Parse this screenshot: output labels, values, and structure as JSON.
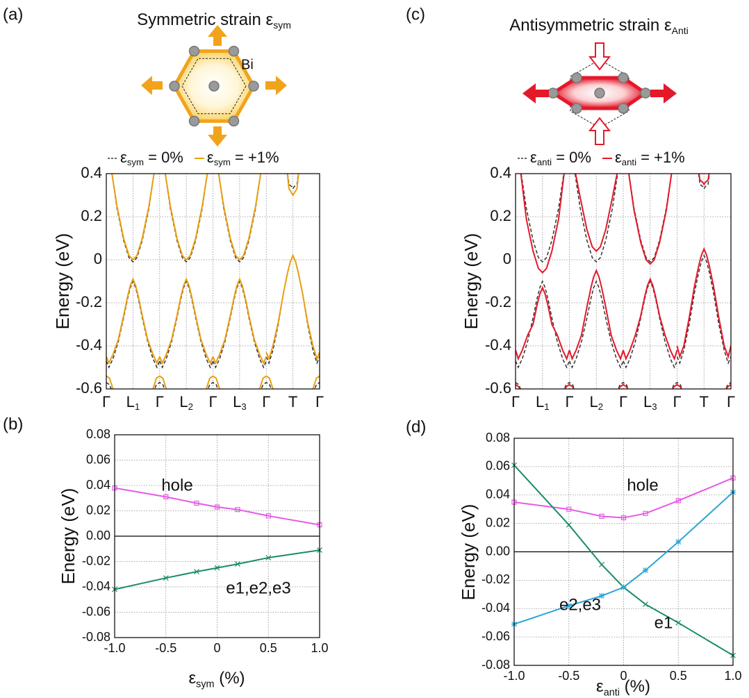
{
  "diagrams": [
    {
      "title": {
        "text": "Symmetric strain ε",
        "sub": "sym"
      },
      "color": "#f2a31c",
      "atom_label": "Bi"
    },
    {
      "title": {
        "text": "Antisymmetric strain ε",
        "sub": "Anti"
      },
      "color": "#e3192a"
    }
  ],
  "chart_data": [
    {
      "type": "line",
      "panel_label": "(a)",
      "ylabel": "Energy (eV)",
      "grid": true,
      "legend": true,
      "xlim": [
        0,
        8
      ],
      "ylim": [
        -0.6,
        0.4
      ],
      "yticks": [
        -0.6,
        -0.4,
        -0.2,
        0,
        0.2,
        0.4
      ],
      "xticks": [
        {
          "value": 0,
          "label": "Γ"
        },
        {
          "value": 1,
          "label": "L",
          "sub": "1"
        },
        {
          "value": 2,
          "label": "Γ"
        },
        {
          "value": 3,
          "label": "L",
          "sub": "2"
        },
        {
          "value": 4,
          "label": "Γ"
        },
        {
          "value": 5,
          "label": "L",
          "sub": "3"
        },
        {
          "value": 6,
          "label": "Γ"
        },
        {
          "value": 7,
          "label": "T"
        },
        {
          "value": 8,
          "label": "Γ"
        }
      ],
      "x": [
        0,
        0.1,
        0.25,
        0.45,
        0.65,
        0.8,
        0.9,
        1,
        1.1,
        1.2,
        1.35,
        1.55,
        1.75,
        1.9,
        2,
        null,
        2,
        2.1,
        2.25,
        2.45,
        2.65,
        2.8,
        2.9,
        3,
        3.1,
        3.2,
        3.35,
        3.55,
        3.75,
        3.9,
        4,
        null,
        4,
        4.1,
        4.25,
        4.45,
        4.65,
        4.8,
        4.9,
        5,
        5.1,
        5.2,
        5.35,
        5.55,
        5.75,
        5.9,
        6,
        null,
        6,
        6.1,
        6.25,
        6.45,
        6.65,
        6.8,
        6.9,
        7,
        7.1,
        7.2,
        7.35,
        7.55,
        7.75,
        7.9,
        8,
        null,
        0.15,
        0.4,
        0.65,
        0.85,
        1,
        1.15,
        1.35,
        1.6,
        1.85,
        null,
        2.15,
        2.4,
        2.65,
        2.85,
        3,
        3.15,
        3.35,
        3.6,
        3.85,
        null,
        4.15,
        4.4,
        4.65,
        4.85,
        5,
        5.15,
        5.35,
        5.6,
        5.85,
        null,
        6.75,
        6.85,
        6.95,
        7,
        7.05,
        7.15,
        7.25,
        null,
        1.75,
        1.88,
        2,
        2.12,
        2.25,
        null,
        3.75,
        3.88,
        4,
        4.12,
        4.25,
        null,
        5.75,
        5.88,
        6,
        6.12,
        6.25,
        null,
        0,
        0.12,
        0.25,
        null,
        7.75,
        7.88,
        8
      ],
      "series": [
        {
          "name": {
            "text": "ε",
            "sub": "sym",
            "rest": " = 0%"
          },
          "color": "#333333",
          "dashed": true,
          "values": [
            -0.47,
            -0.5,
            -0.46,
            -0.38,
            -0.27,
            -0.18,
            -0.13,
            -0.1,
            -0.13,
            -0.18,
            -0.27,
            -0.38,
            -0.46,
            -0.5,
            -0.47,
            null,
            -0.47,
            -0.5,
            -0.46,
            -0.38,
            -0.27,
            -0.18,
            -0.13,
            -0.1,
            -0.13,
            -0.18,
            -0.27,
            -0.38,
            -0.46,
            -0.5,
            -0.47,
            null,
            -0.47,
            -0.5,
            -0.46,
            -0.38,
            -0.27,
            -0.18,
            -0.13,
            -0.1,
            -0.13,
            -0.18,
            -0.27,
            -0.38,
            -0.46,
            -0.5,
            -0.47,
            null,
            -0.45,
            -0.48,
            -0.42,
            -0.3,
            -0.15,
            -0.06,
            -0.01,
            0.02,
            -0.01,
            -0.06,
            -0.15,
            -0.3,
            -0.42,
            -0.48,
            -0.45,
            null,
            0.45,
            0.24,
            0.09,
            0.01,
            -0.01,
            0.01,
            0.09,
            0.24,
            0.45,
            null,
            0.45,
            0.24,
            0.09,
            0.01,
            -0.01,
            0.01,
            0.09,
            0.24,
            0.45,
            null,
            0.45,
            0.24,
            0.09,
            0.01,
            -0.01,
            0.01,
            0.09,
            0.24,
            0.45,
            null,
            0.45,
            0.35,
            0.34,
            0.33,
            0.34,
            0.35,
            0.45,
            null,
            -0.62,
            -0.58,
            -0.57,
            -0.58,
            -0.62,
            null,
            -0.62,
            -0.58,
            -0.57,
            -0.58,
            -0.62,
            null,
            -0.62,
            -0.58,
            -0.57,
            -0.58,
            -0.62,
            null,
            -0.57,
            -0.58,
            -0.62,
            null,
            -0.62,
            -0.58,
            -0.57
          ]
        },
        {
          "name": {
            "text": "ε",
            "sub": "sym",
            "rest": " = +1%"
          },
          "color": "#e8a010",
          "dashed": false,
          "values": [
            -0.45,
            -0.48,
            -0.44,
            -0.37,
            -0.26,
            -0.17,
            -0.12,
            -0.09,
            -0.12,
            -0.17,
            -0.26,
            -0.37,
            -0.44,
            -0.48,
            -0.45,
            null,
            -0.45,
            -0.48,
            -0.44,
            -0.37,
            -0.26,
            -0.17,
            -0.12,
            -0.09,
            -0.12,
            -0.17,
            -0.26,
            -0.37,
            -0.44,
            -0.48,
            -0.45,
            null,
            -0.45,
            -0.48,
            -0.44,
            -0.37,
            -0.26,
            -0.17,
            -0.12,
            -0.09,
            -0.12,
            -0.17,
            -0.26,
            -0.37,
            -0.44,
            -0.48,
            -0.45,
            null,
            -0.43,
            -0.46,
            -0.4,
            -0.29,
            -0.15,
            -0.06,
            -0.01,
            0.02,
            -0.01,
            -0.06,
            -0.15,
            -0.29,
            -0.4,
            -0.46,
            -0.43,
            null,
            0.45,
            0.25,
            0.1,
            0.02,
            0,
            0.02,
            0.1,
            0.25,
            0.45,
            null,
            0.45,
            0.25,
            0.1,
            0.02,
            0,
            0.02,
            0.1,
            0.25,
            0.45,
            null,
            0.45,
            0.25,
            0.1,
            0.02,
            0,
            0.02,
            0.1,
            0.25,
            0.45,
            null,
            0.45,
            0.33,
            0.31,
            0.3,
            0.31,
            0.33,
            0.45,
            null,
            -0.6,
            -0.55,
            -0.54,
            -0.55,
            -0.6,
            null,
            -0.6,
            -0.55,
            -0.54,
            -0.55,
            -0.6,
            null,
            -0.6,
            -0.55,
            -0.54,
            -0.55,
            -0.6,
            null,
            -0.54,
            -0.55,
            -0.6,
            null,
            -0.6,
            -0.55,
            -0.54
          ]
        }
      ]
    },
    {
      "type": "line",
      "panel_label": "(b)",
      "ylabel": "Energy (eV)",
      "xlabel": {
        "text": "ε",
        "sub": "sym",
        "rest": " (%)"
      },
      "grid": true,
      "zero_line": true,
      "xlim": [
        -1,
        1
      ],
      "xticks": [
        {
          "value": -1,
          "label": "-1.0"
        },
        -0.5,
        0,
        0.5,
        {
          "value": 1,
          "label": "1.0"
        }
      ],
      "ylim": [
        -0.08,
        0.08
      ],
      "yticks": [
        -0.08,
        -0.06,
        -0.04,
        -0.02,
        {
          "value": 0,
          "label": "0.00"
        },
        0.02,
        0.04,
        0.06,
        0.08
      ],
      "x": [
        -1,
        -0.5,
        -0.2,
        0,
        0.2,
        0.5,
        1
      ],
      "series": [
        {
          "name": "hole",
          "color": "#e659e6",
          "marker": "square",
          "values": [
            0.038,
            0.031,
            0.026,
            0.023,
            0.021,
            0.016,
            0.009
          ]
        },
        {
          "name": "e1,e2,e3",
          "color": "#1a8c64",
          "marker": "cross",
          "values": [
            -0.042,
            -0.033,
            -0.028,
            -0.025,
            -0.022,
            -0.017,
            -0.011
          ]
        }
      ]
    },
    {
      "type": "line",
      "panel_label": "(c)",
      "ylabel": "Energy (eV)",
      "grid": true,
      "legend": true,
      "xlim": [
        0,
        8
      ],
      "ylim": [
        -0.6,
        0.4
      ],
      "yticks": [
        -0.6,
        -0.4,
        -0.2,
        0,
        0.2,
        0.4
      ],
      "xticks": [
        {
          "value": 0,
          "label": "Γ"
        },
        {
          "value": 1,
          "label": "L",
          "sub": "1"
        },
        {
          "value": 2,
          "label": "Γ"
        },
        {
          "value": 3,
          "label": "L",
          "sub": "2"
        },
        {
          "value": 4,
          "label": "Γ"
        },
        {
          "value": 5,
          "label": "L",
          "sub": "3"
        },
        {
          "value": 6,
          "label": "Γ"
        },
        {
          "value": 7,
          "label": "T"
        },
        {
          "value": 8,
          "label": "Γ"
        }
      ],
      "x": [
        0,
        0.1,
        0.25,
        0.45,
        0.65,
        0.8,
        0.9,
        1,
        1.1,
        1.2,
        1.35,
        1.55,
        1.75,
        1.9,
        2,
        null,
        2,
        2.1,
        2.25,
        2.45,
        2.65,
        2.8,
        2.9,
        3,
        3.1,
        3.2,
        3.35,
        3.55,
        3.75,
        3.9,
        4,
        null,
        4,
        4.1,
        4.25,
        4.45,
        4.65,
        4.8,
        4.9,
        5,
        5.1,
        5.2,
        5.35,
        5.55,
        5.75,
        5.9,
        6,
        null,
        6,
        6.1,
        6.25,
        6.45,
        6.65,
        6.8,
        6.9,
        7,
        7.1,
        7.2,
        7.35,
        7.55,
        7.75,
        7.9,
        8,
        null,
        0.15,
        0.4,
        0.65,
        0.85,
        1,
        1.15,
        1.35,
        1.6,
        1.85,
        null,
        2.15,
        2.4,
        2.65,
        2.85,
        3,
        3.15,
        3.35,
        3.6,
        3.85,
        null,
        4.15,
        4.4,
        4.65,
        4.85,
        5,
        5.15,
        5.35,
        5.6,
        5.85,
        null,
        6.75,
        6.85,
        6.95,
        7,
        7.05,
        7.15,
        7.25,
        null,
        1.75,
        1.88,
        2,
        2.12,
        2.25,
        null,
        3.75,
        3.88,
        4,
        4.12,
        4.25,
        null,
        5.75,
        5.88,
        6,
        6.12,
        6.25,
        null,
        0,
        0.12,
        0.25,
        null,
        7.75,
        7.88,
        8
      ],
      "series": [
        {
          "name": {
            "text": "ε",
            "sub": "anti",
            "rest": " = 0%"
          },
          "color": "#333333",
          "dashed": true,
          "values": [
            -0.47,
            -0.5,
            -0.46,
            -0.38,
            -0.27,
            -0.18,
            -0.13,
            -0.1,
            -0.13,
            -0.18,
            -0.27,
            -0.38,
            -0.46,
            -0.5,
            -0.47,
            null,
            -0.47,
            -0.5,
            -0.46,
            -0.38,
            -0.27,
            -0.18,
            -0.13,
            -0.1,
            -0.13,
            -0.18,
            -0.27,
            -0.38,
            -0.46,
            -0.5,
            -0.47,
            null,
            -0.47,
            -0.5,
            -0.46,
            -0.38,
            -0.27,
            -0.18,
            -0.13,
            -0.1,
            -0.13,
            -0.18,
            -0.27,
            -0.38,
            -0.46,
            -0.5,
            -0.47,
            null,
            -0.45,
            -0.48,
            -0.42,
            -0.3,
            -0.15,
            -0.06,
            -0.01,
            0.02,
            -0.01,
            -0.06,
            -0.15,
            -0.3,
            -0.42,
            -0.48,
            -0.45,
            null,
            0.45,
            0.24,
            0.09,
            0.01,
            -0.01,
            0.01,
            0.09,
            0.24,
            0.45,
            null,
            0.45,
            0.24,
            0.09,
            0.01,
            -0.01,
            0.01,
            0.09,
            0.24,
            0.45,
            null,
            0.45,
            0.24,
            0.09,
            0.01,
            -0.01,
            0.01,
            0.09,
            0.24,
            0.45,
            null,
            0.45,
            0.35,
            0.34,
            0.33,
            0.34,
            0.35,
            0.45,
            null,
            -0.62,
            -0.58,
            -0.57,
            -0.58,
            -0.62,
            null,
            -0.62,
            -0.58,
            -0.57,
            -0.58,
            -0.62,
            null,
            -0.62,
            -0.58,
            -0.57,
            -0.58,
            -0.62,
            null,
            -0.57,
            -0.58,
            -0.62,
            null,
            -0.62,
            -0.58,
            -0.57
          ]
        },
        {
          "name": {
            "text": "ε",
            "sub": "anti",
            "rest": " = +1%"
          },
          "color": "#e3192a",
          "dashed": false,
          "values": [
            -0.42,
            -0.46,
            -0.42,
            -0.35,
            -0.3,
            -0.21,
            -0.16,
            -0.13,
            -0.16,
            -0.21,
            -0.3,
            -0.35,
            -0.42,
            -0.46,
            -0.42,
            null,
            -0.42,
            -0.46,
            -0.42,
            -0.35,
            -0.22,
            -0.13,
            -0.08,
            -0.05,
            -0.08,
            -0.13,
            -0.22,
            -0.35,
            -0.42,
            -0.46,
            -0.42,
            null,
            -0.42,
            -0.46,
            -0.42,
            -0.35,
            -0.26,
            -0.17,
            -0.12,
            -0.09,
            -0.12,
            -0.17,
            -0.26,
            -0.35,
            -0.42,
            -0.46,
            -0.42,
            null,
            -0.4,
            -0.45,
            -0.4,
            -0.27,
            -0.12,
            -0.03,
            0.02,
            0.05,
            0.02,
            -0.03,
            -0.12,
            -0.27,
            -0.4,
            -0.45,
            -0.4,
            null,
            0.45,
            0.19,
            0.04,
            -0.04,
            -0.06,
            -0.04,
            0.04,
            0.19,
            0.45,
            null,
            0.45,
            0.29,
            0.14,
            0.06,
            0.04,
            0.06,
            0.14,
            0.29,
            0.45,
            null,
            0.45,
            0.23,
            0.08,
            0,
            -0.02,
            0,
            0.08,
            0.23,
            0.45,
            null,
            0.45,
            0.37,
            0.36,
            0.35,
            0.36,
            0.37,
            0.45,
            null,
            -0.62,
            -0.59,
            -0.58,
            -0.59,
            -0.62,
            null,
            -0.62,
            -0.59,
            -0.58,
            -0.59,
            -0.62,
            null,
            -0.62,
            -0.59,
            -0.58,
            -0.59,
            -0.62,
            null,
            -0.58,
            -0.59,
            -0.62,
            null,
            -0.62,
            -0.59,
            -0.58
          ]
        }
      ]
    },
    {
      "type": "line",
      "panel_label": "(d)",
      "ylabel": "Energy (eV)",
      "xlabel": {
        "text": "ε",
        "sub": "anti",
        "rest": " (%)"
      },
      "grid": true,
      "zero_line": true,
      "xlim": [
        -1,
        1
      ],
      "xticks": [
        {
          "value": -1,
          "label": "-1.0"
        },
        -0.5,
        0,
        0.5,
        {
          "value": 1,
          "label": "1.0"
        }
      ],
      "ylim": [
        -0.08,
        0.08
      ],
      "yticks": [
        -0.08,
        -0.06,
        -0.04,
        -0.02,
        {
          "value": 0,
          "label": "0.00"
        },
        0.02,
        0.04,
        0.06,
        0.08
      ],
      "x": [
        -1,
        -0.5,
        -0.2,
        0,
        0.2,
        0.5,
        1
      ],
      "series": [
        {
          "name": "hole",
          "color": "#e659e6",
          "marker": "square",
          "values": [
            0.035,
            0.03,
            0.025,
            0.024,
            0.027,
            0.036,
            0.052
          ]
        },
        {
          "name": "e1",
          "color": "#1a8c64",
          "marker": "cross",
          "values": [
            0.061,
            0.019,
            -0.009,
            -0.025,
            -0.037,
            -0.05,
            -0.073
          ]
        },
        {
          "name": "e2,e3",
          "color": "#2aa5d8",
          "marker": "asterisk",
          "values": [
            -0.051,
            -0.038,
            -0.031,
            -0.025,
            -0.013,
            0.007,
            0.042
          ]
        }
      ]
    }
  ]
}
